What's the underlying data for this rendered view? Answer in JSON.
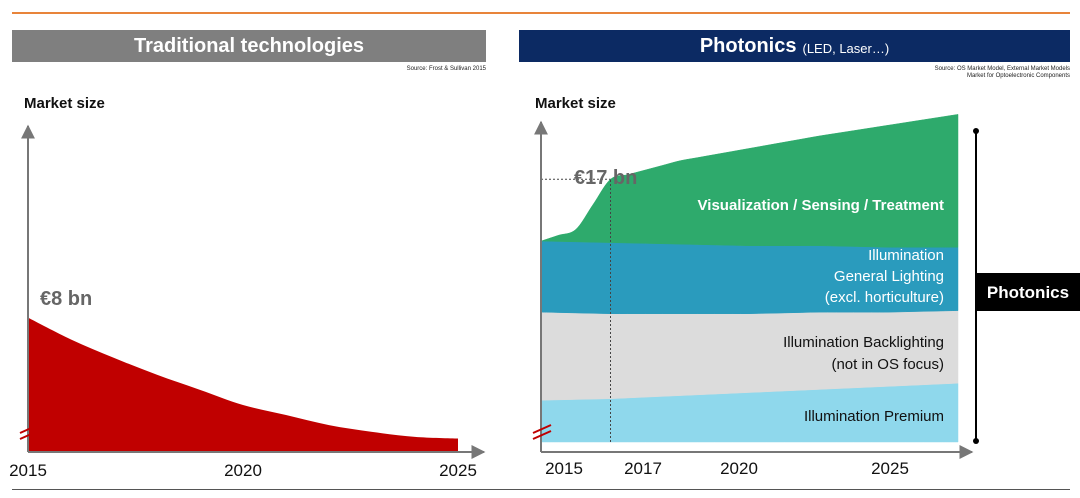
{
  "colors": {
    "accent_rule": "#e8843a",
    "left_banner": "#7f7f7f",
    "right_banner": "#0c2a63",
    "red_area": "#c00000",
    "green_area": "#2eaa6c",
    "teal_area": "#2a9bbd",
    "gray_area": "#dcdcdc",
    "lightblue_area": "#8fd8ec",
    "axis": "#777777",
    "photonics_badge": "#000000"
  },
  "left_panel": {
    "title": "Traditional technologies",
    "source": "Source: Frost & Sullivan 2015"
  },
  "right_panel": {
    "title": "Photonics",
    "subtitle": "(LED, Laser…)",
    "source_line1": "Source: OS Market Model, External Market Models",
    "source_line2": "Market for Optoelectronic Components",
    "bracket_label": "Photonics"
  },
  "chart_data": [
    {
      "type": "area",
      "title": "Traditional technologies",
      "ylabel": "Market size",
      "x_ticks": [
        "2015",
        "2020",
        "2025"
      ],
      "xlim": [
        2015,
        2025
      ],
      "ylim": [
        0,
        10
      ],
      "series": [
        {
          "name": "Traditional technologies",
          "x": [
            2015,
            2016,
            2017,
            2018,
            2019,
            2020,
            2021,
            2022,
            2023,
            2024,
            2025
          ],
          "values": [
            8.0,
            6.7,
            5.6,
            4.6,
            3.7,
            2.8,
            2.2,
            1.6,
            1.2,
            0.9,
            0.8
          ]
        }
      ],
      "annotations": [
        {
          "x": 2015,
          "label": "€8 bn"
        }
      ],
      "axis_break": true
    },
    {
      "type": "area",
      "stacked": true,
      "title": "Photonics (LED, Laser…)",
      "ylabel": "Market size",
      "x_ticks": [
        "2015",
        "2017",
        "2020",
        "2025"
      ],
      "xlim": [
        2015,
        2027
      ],
      "ylim": [
        0,
        22
      ],
      "reference_year": 2017,
      "series": [
        {
          "name": "Illumination Premium",
          "label_lines": [
            "Illumination Premium"
          ],
          "x": [
            2015,
            2017,
            2019,
            2021,
            2023,
            2025,
            2027
          ],
          "values": [
            2.7,
            2.8,
            3.0,
            3.2,
            3.4,
            3.6,
            3.8
          ]
        },
        {
          "name": "Illumination Backlighting (not in OS focus)",
          "label_lines": [
            "Illumination Backlighting",
            "(not in OS focus)"
          ],
          "x": [
            2015,
            2017,
            2019,
            2021,
            2023,
            2025,
            2027
          ],
          "values": [
            5.7,
            5.5,
            5.3,
            5.1,
            5.0,
            4.8,
            4.7
          ]
        },
        {
          "name": "Illumination General Lighting (excl. horticulture)",
          "label_lines": [
            "Illumination",
            "General Lighting",
            "(excl. horticulture)"
          ],
          "x": [
            2015,
            2017,
            2019,
            2021,
            2023,
            2025,
            2027
          ],
          "values": [
            4.6,
            4.6,
            4.5,
            4.4,
            4.3,
            4.2,
            4.1
          ]
        },
        {
          "name": "Visualization / Sensing / Treatment",
          "label_lines": [
            "Visualization / Sensing / Treatment"
          ],
          "x": [
            2015,
            2016,
            2017,
            2019,
            2021,
            2023,
            2025,
            2027
          ],
          "values": [
            0.0,
            0.8,
            4.1,
            5.4,
            6.3,
            7.1,
            7.9,
            8.6
          ]
        }
      ],
      "annotations": [
        {
          "x": 2017,
          "label": "€17 bn"
        }
      ],
      "axis_break": true
    }
  ]
}
